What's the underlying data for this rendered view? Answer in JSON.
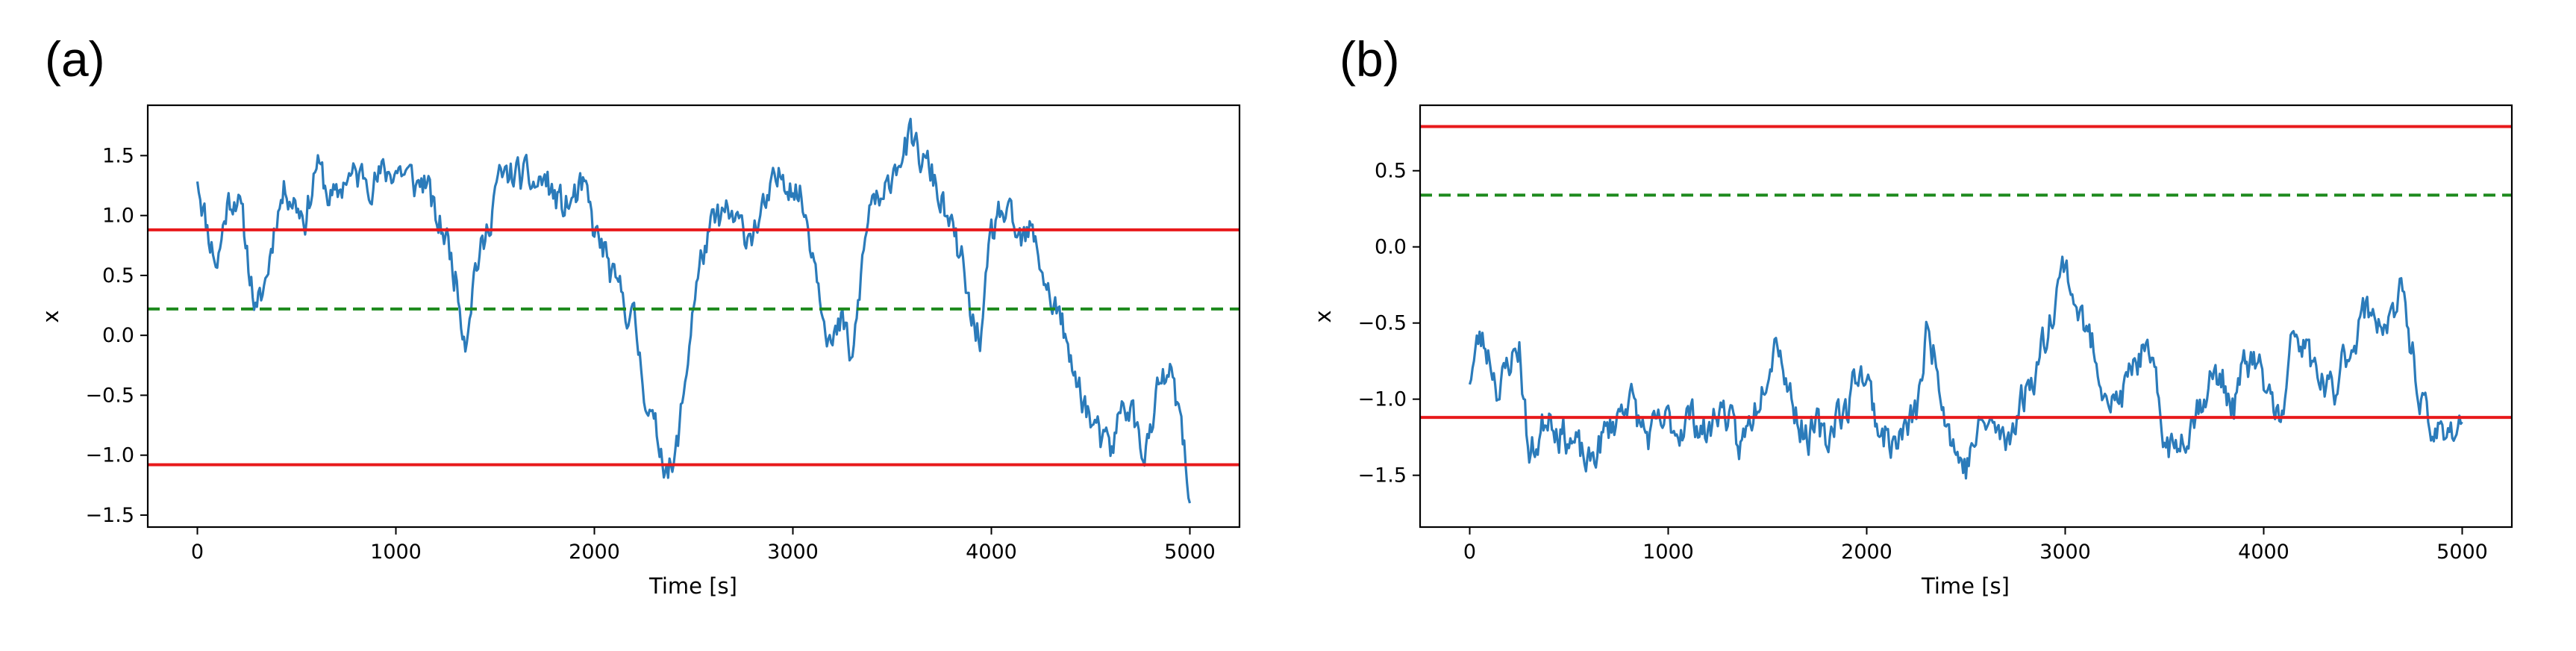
{
  "chart_data": [
    {
      "type": "line",
      "panel_label": "(a)",
      "xlabel": "Time [s]",
      "ylabel": "x",
      "xlim": [
        -250,
        5250
      ],
      "ylim": [
        -1.6,
        1.92
      ],
      "xticks": [
        0,
        1000,
        2000,
        3000,
        4000,
        5000
      ],
      "xtick_labels": [
        "0",
        "1000",
        "2000",
        "3000",
        "4000",
        "5000"
      ],
      "yticks": [
        -1.5,
        -1.0,
        -0.5,
        0.0,
        0.5,
        1.0,
        1.5
      ],
      "ytick_labels": [
        "−1.5",
        "−1.0",
        "−0.5",
        "0.0",
        "0.5",
        "1.0",
        "1.5"
      ],
      "grid": false,
      "hlines": [
        {
          "y": 0.88,
          "style": "solid",
          "color": "#e8191b"
        },
        {
          "y": 0.22,
          "style": "dashed",
          "color": "#1d8a1d"
        },
        {
          "y": -1.08,
          "style": "solid",
          "color": "#e8191b"
        }
      ],
      "series": [
        {
          "color": "#2b7bba",
          "noise": 0.16,
          "seed": 11,
          "x": [
            0,
            50,
            100,
            150,
            200,
            250,
            300,
            350,
            400,
            450,
            500,
            550,
            600,
            650,
            700,
            750,
            800,
            850,
            900,
            950,
            1000,
            1050,
            1100,
            1150,
            1200,
            1250,
            1300,
            1350,
            1400,
            1450,
            1500,
            1550,
            1600,
            1650,
            1700,
            1750,
            1800,
            1850,
            1900,
            1950,
            2000,
            2050,
            2100,
            2150,
            2200,
            2250,
            2300,
            2350,
            2400,
            2450,
            2500,
            2550,
            2600,
            2650,
            2700,
            2750,
            2800,
            2850,
            2900,
            2950,
            3000,
            3050,
            3100,
            3150,
            3200,
            3250,
            3300,
            3350,
            3400,
            3450,
            3500,
            3550,
            3600,
            3650,
            3700,
            3750,
            3800,
            3850,
            3900,
            3950,
            4000,
            4050,
            4100,
            4150,
            4200,
            4250,
            4300,
            4350,
            4400,
            4450,
            4500,
            4550,
            4600,
            4650,
            4700,
            4750,
            4800,
            4850,
            4900,
            4950,
            5000
          ],
          "y": [
            1.35,
            0.9,
            0.6,
            1.1,
            1.2,
            0.7,
            0.15,
            0.5,
            1.05,
            1.25,
            1.1,
            1.0,
            1.45,
            1.2,
            1.1,
            1.35,
            1.3,
            1.35,
            1.3,
            1.35,
            1.4,
            1.35,
            1.25,
            1.3,
            0.95,
            0.85,
            0.5,
            0.0,
            0.6,
            0.75,
            1.25,
            1.3,
            1.35,
            1.3,
            1.25,
            1.3,
            1.15,
            1.05,
            1.15,
            1.2,
            0.85,
            0.7,
            0.4,
            0.3,
            0.1,
            -0.4,
            -0.8,
            -1.0,
            -1.15,
            -0.5,
            0.3,
            0.7,
            0.9,
            1.0,
            0.95,
            0.85,
            0.9,
            1.0,
            1.2,
            1.35,
            1.3,
            1.1,
            0.75,
            0.3,
            -0.1,
            0.1,
            -0.25,
            0.6,
            1.2,
            1.0,
            1.4,
            1.55,
            1.6,
            1.45,
            1.35,
            1.1,
            0.85,
            0.6,
            0.1,
            0.0,
            0.8,
            1.05,
            0.9,
            0.75,
            0.85,
            0.6,
            0.3,
            0.15,
            -0.3,
            -0.45,
            -0.7,
            -0.9,
            -1.0,
            -0.65,
            -0.55,
            -0.95,
            -0.85,
            -0.4,
            -0.35,
            -0.7,
            -1.4
          ]
        }
      ]
    },
    {
      "type": "line",
      "panel_label": "(b)",
      "xlabel": "Time [s]",
      "ylabel": "x",
      "xlim": [
        -250,
        5250
      ],
      "ylim": [
        -1.84,
        0.93
      ],
      "xticks": [
        0,
        1000,
        2000,
        3000,
        4000,
        5000
      ],
      "xtick_labels": [
        "0",
        "1000",
        "2000",
        "3000",
        "4000",
        "5000"
      ],
      "yticks": [
        -1.5,
        -1.0,
        -0.5,
        0.0,
        0.5
      ],
      "ytick_labels": [
        "−1.5",
        "−1.0",
        "−0.5",
        "0.0",
        "0.5"
      ],
      "grid": false,
      "hlines": [
        {
          "y": 0.79,
          "style": "solid",
          "color": "#e8191b"
        },
        {
          "y": 0.34,
          "style": "dashed",
          "color": "#1d8a1d"
        },
        {
          "y": -1.12,
          "style": "solid",
          "color": "#e8191b"
        }
      ],
      "series": [
        {
          "color": "#2b7bba",
          "noise": 0.13,
          "seed": 23,
          "x": [
            0,
            50,
            100,
            150,
            200,
            250,
            300,
            350,
            400,
            450,
            500,
            550,
            600,
            650,
            700,
            750,
            800,
            850,
            900,
            950,
            1000,
            1050,
            1100,
            1150,
            1200,
            1250,
            1300,
            1350,
            1400,
            1450,
            1500,
            1550,
            1600,
            1650,
            1700,
            1750,
            1800,
            1850,
            1900,
            1950,
            2000,
            2050,
            2100,
            2150,
            2200,
            2250,
            2300,
            2350,
            2400,
            2450,
            2500,
            2550,
            2600,
            2650,
            2700,
            2750,
            2800,
            2850,
            2900,
            2950,
            3000,
            3050,
            3100,
            3150,
            3200,
            3250,
            3300,
            3350,
            3400,
            3450,
            3500,
            3550,
            3600,
            3650,
            3700,
            3750,
            3800,
            3850,
            3900,
            3950,
            4000,
            4050,
            4100,
            4150,
            4200,
            4250,
            4300,
            4350,
            4400,
            4450,
            4500,
            4550,
            4600,
            4650,
            4700,
            4750,
            4800,
            4850,
            4900,
            4950,
            5000
          ],
          "y": [
            -0.85,
            -0.6,
            -0.7,
            -0.95,
            -0.75,
            -0.65,
            -1.4,
            -1.25,
            -1.05,
            -1.2,
            -1.25,
            -1.35,
            -1.45,
            -1.3,
            -1.2,
            -1.1,
            -0.95,
            -1.15,
            -1.25,
            -1.2,
            -1.15,
            -1.2,
            -1.1,
            -1.15,
            -1.25,
            -1.05,
            -1.1,
            -1.35,
            -1.2,
            -1.0,
            -0.75,
            -0.55,
            -0.9,
            -1.1,
            -1.25,
            -1.2,
            -1.3,
            -1.05,
            -1.1,
            -0.8,
            -0.85,
            -1.15,
            -1.25,
            -1.3,
            -1.2,
            -1.1,
            -0.6,
            -0.7,
            -1.1,
            -1.35,
            -1.45,
            -1.25,
            -1.15,
            -1.2,
            -1.3,
            -1.1,
            -0.95,
            -0.8,
            -0.6,
            -0.3,
            -0.1,
            -0.35,
            -0.55,
            -0.7,
            -0.9,
            -1.05,
            -0.95,
            -0.75,
            -0.7,
            -0.9,
            -1.25,
            -1.35,
            -1.2,
            -1.1,
            -0.95,
            -0.85,
            -0.9,
            -1.05,
            -0.8,
            -0.75,
            -0.9,
            -1.05,
            -1.15,
            -0.55,
            -0.65,
            -0.8,
            -0.9,
            -1.0,
            -0.75,
            -0.6,
            -0.45,
            -0.4,
            -0.5,
            -0.5,
            -0.3,
            -0.7,
            -1.05,
            -1.3,
            -1.15,
            -1.2,
            -1.15
          ]
        }
      ]
    }
  ]
}
